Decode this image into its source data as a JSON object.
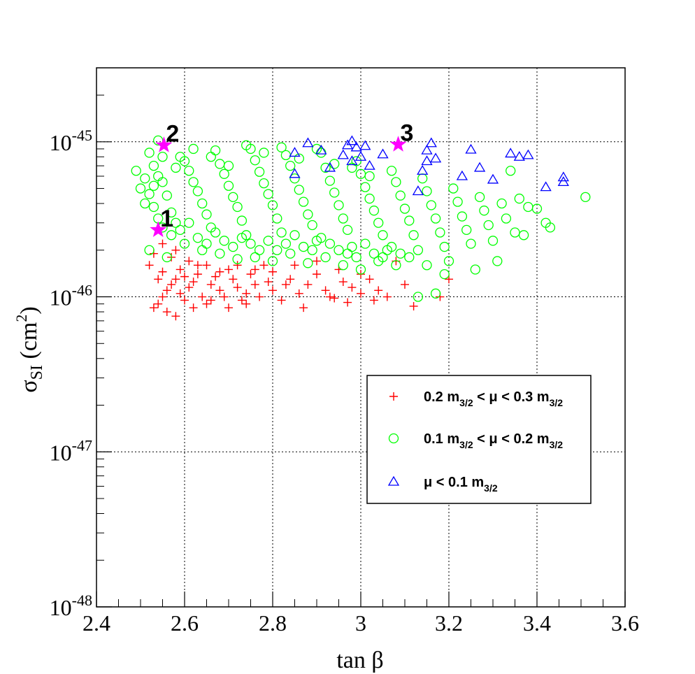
{
  "chart_data": {
    "type": "scatter",
    "xlabel": "tan β",
    "ylabel_main": "σ",
    "ylabel_sub": "SI",
    "ylabel_unit_pre": " (cm",
    "ylabel_unit_sup": "2",
    "ylabel_unit_post": ")",
    "xlim": [
      2.4,
      3.6
    ],
    "ylim": [
      1e-48,
      3e-45
    ],
    "yscale": "log",
    "grid": true,
    "legend_position": "bottom-right",
    "x_ticks": [
      {
        "value": 2.4,
        "label": "2.4"
      },
      {
        "value": 2.6,
        "label": "2.6"
      },
      {
        "value": 2.8,
        "label": "2.8"
      },
      {
        "value": 3.0,
        "label": "3"
      },
      {
        "value": 3.2,
        "label": "3.2"
      },
      {
        "value": 3.4,
        "label": "3.4"
      },
      {
        "value": 3.6,
        "label": "3.6"
      }
    ],
    "y_ticks": [
      {
        "value": 1e-48,
        "base": "10",
        "exp": "-48"
      },
      {
        "value": 1e-47,
        "base": "10",
        "exp": "-47"
      },
      {
        "value": 1e-46,
        "base": "10",
        "exp": "-46"
      },
      {
        "value": 1e-45,
        "base": "10",
        "exp": "-45"
      }
    ],
    "series": [
      {
        "marker": "plus",
        "color": "#ff0000",
        "legend": [
          "0.2 m",
          "3/2",
          " < μ < 0.3 m",
          "3/2"
        ],
        "points": [
          [
            2.53,
            8.5e-47
          ],
          [
            2.54,
            9e-47
          ],
          [
            2.55,
            1e-46
          ],
          [
            2.56,
            1.1e-46
          ],
          [
            2.57,
            1.2e-46
          ],
          [
            2.58,
            1.3e-46
          ],
          [
            2.59,
            1.05e-46
          ],
          [
            2.6,
            9.5e-47
          ],
          [
            2.61,
            1.15e-46
          ],
          [
            2.62,
            1.25e-46
          ],
          [
            2.63,
            1.4e-46
          ],
          [
            2.64,
            1e-46
          ],
          [
            2.65,
            9e-47
          ],
          [
            2.66,
            1.2e-46
          ],
          [
            2.67,
            1.35e-46
          ],
          [
            2.68,
            1.1e-46
          ],
          [
            2.69,
            1e-46
          ],
          [
            2.7,
            1.5e-46
          ],
          [
            2.71,
            1.3e-46
          ],
          [
            2.72,
            1.15e-46
          ],
          [
            2.73,
            9.5e-47
          ],
          [
            2.74,
            1.05e-46
          ],
          [
            2.75,
            1.4e-46
          ],
          [
            2.76,
            1.2e-46
          ],
          [
            2.77,
            1e-46
          ],
          [
            2.78,
            1.6e-46
          ],
          [
            2.79,
            1.25e-46
          ],
          [
            2.8,
            1.1e-46
          ],
          [
            2.82,
            9.5e-47
          ],
          [
            2.84,
            1.3e-46
          ],
          [
            2.86,
            1.05e-46
          ],
          [
            2.88,
            1.2e-46
          ],
          [
            2.9,
            1.4e-46
          ],
          [
            2.92,
            1.1e-46
          ],
          [
            2.94,
            9.8e-47
          ],
          [
            2.96,
            1.25e-46
          ],
          [
            2.98,
            1.15e-46
          ],
          [
            3.0,
            1.05e-46
          ],
          [
            3.02,
            1.3e-46
          ],
          [
            3.04,
            1.1e-46
          ],
          [
            3.06,
            1e-46
          ],
          [
            3.08,
            1.7e-46
          ],
          [
            3.1,
            1.2e-46
          ],
          [
            3.12,
            8.7e-47
          ],
          [
            3.18,
            1e-46
          ],
          [
            3.2,
            1.3e-46
          ],
          [
            2.52,
            1.6e-46
          ],
          [
            2.53,
            1.9e-46
          ],
          [
            2.55,
            2.2e-46
          ],
          [
            2.57,
            1.8e-46
          ],
          [
            2.59,
            1.5e-46
          ],
          [
            2.61,
            1.7e-46
          ],
          [
            2.63,
            1.6e-46
          ],
          [
            2.56,
            8e-47
          ],
          [
            2.58,
            7.5e-47
          ],
          [
            2.62,
            8.5e-47
          ],
          [
            2.66,
            9.5e-47
          ],
          [
            2.7,
            8.5e-47
          ],
          [
            2.74,
            9e-47
          ],
          [
            2.54,
            1.3e-46
          ],
          [
            2.55,
            1.45e-46
          ],
          [
            2.6,
            1.35e-46
          ],
          [
            2.68,
            1.45e-46
          ],
          [
            2.72,
            1.6e-46
          ],
          [
            2.76,
            1.5e-46
          ],
          [
            2.8,
            1.45e-46
          ],
          [
            2.85,
            1.6e-46
          ],
          [
            2.9,
            1.7e-46
          ],
          [
            2.95,
            1.5e-46
          ],
          [
            3.0,
            1.4e-46
          ],
          [
            2.87,
            8.5e-47
          ],
          [
            2.93,
            1e-46
          ],
          [
            2.97,
            9.2e-47
          ],
          [
            3.03,
            9.5e-47
          ],
          [
            2.83,
            1.2e-46
          ],
          [
            2.65,
            1.6e-46
          ],
          [
            2.58,
            2e-46
          ]
        ]
      },
      {
        "marker": "circle",
        "color": "#00ff00",
        "legend": [
          "0.1 m",
          "3/2",
          " < μ < 0.2 m",
          "3/2"
        ],
        "points": [
          [
            2.49,
            6.5e-46
          ],
          [
            2.5,
            5e-46
          ],
          [
            2.51,
            4e-46
          ],
          [
            2.52,
            8.5e-46
          ],
          [
            2.53,
            7e-46
          ],
          [
            2.54,
            6e-46
          ],
          [
            2.55,
            5.5e-46
          ],
          [
            2.56,
            4.5e-46
          ],
          [
            2.57,
            3.5e-46
          ],
          [
            2.58,
            3e-46
          ],
          [
            2.59,
            8e-46
          ],
          [
            2.6,
            7.5e-46
          ],
          [
            2.61,
            6.5e-46
          ],
          [
            2.62,
            5.5e-46
          ],
          [
            2.63,
            4.8e-46
          ],
          [
            2.64,
            4e-46
          ],
          [
            2.65,
            3.4e-46
          ],
          [
            2.66,
            2.8e-46
          ],
          [
            2.67,
            8.8e-46
          ],
          [
            2.68,
            7.2e-46
          ],
          [
            2.69,
            6.2e-46
          ],
          [
            2.7,
            5.2e-46
          ],
          [
            2.71,
            4.4e-46
          ],
          [
            2.72,
            3.8e-46
          ],
          [
            2.73,
            3.1e-46
          ],
          [
            2.74,
            2.5e-46
          ],
          [
            2.75,
            9e-46
          ],
          [
            2.76,
            7.6e-46
          ],
          [
            2.77,
            6.4e-46
          ],
          [
            2.78,
            5.4e-46
          ],
          [
            2.79,
            4.6e-46
          ],
          [
            2.8,
            3.9e-46
          ],
          [
            2.81,
            3.2e-46
          ],
          [
            2.82,
            2.6e-46
          ],
          [
            2.83,
            8.2e-46
          ],
          [
            2.84,
            7e-46
          ],
          [
            2.85,
            5.8e-46
          ],
          [
            2.86,
            4.9e-46
          ],
          [
            2.87,
            4.1e-46
          ],
          [
            2.88,
            3.4e-46
          ],
          [
            2.89,
            2.9e-46
          ],
          [
            2.9,
            2.3e-46
          ],
          [
            2.91,
            8.5e-46
          ],
          [
            2.92,
            6.8e-46
          ],
          [
            2.93,
            5.6e-46
          ],
          [
            2.94,
            4.7e-46
          ],
          [
            2.95,
            3.9e-46
          ],
          [
            2.96,
            3.2e-46
          ],
          [
            2.97,
            2.7e-46
          ],
          [
            2.98,
            2.1e-46
          ],
          [
            2.99,
            7.5e-46
          ],
          [
            3.0,
            6.2e-46
          ],
          [
            3.01,
            5.1e-46
          ],
          [
            3.02,
            4.3e-46
          ],
          [
            3.03,
            3.6e-46
          ],
          [
            3.04,
            3e-46
          ],
          [
            3.05,
            2.5e-46
          ],
          [
            3.06,
            2e-46
          ],
          [
            3.07,
            6.5e-46
          ],
          [
            3.08,
            5.5e-46
          ],
          [
            3.09,
            4.5e-46
          ],
          [
            3.1,
            3.7e-46
          ],
          [
            3.11,
            3.1e-46
          ],
          [
            3.12,
            2.5e-46
          ],
          [
            3.13,
            2e-46
          ],
          [
            3.14,
            5.8e-46
          ],
          [
            3.15,
            4.8e-46
          ],
          [
            3.16,
            3.9e-46
          ],
          [
            3.17,
            3.2e-46
          ],
          [
            3.18,
            2.6e-46
          ],
          [
            3.19,
            2.1e-46
          ],
          [
            3.2,
            1.7e-46
          ],
          [
            3.21,
            5e-46
          ],
          [
            3.22,
            4.1e-46
          ],
          [
            3.23,
            3.3e-46
          ],
          [
            3.24,
            2.7e-46
          ],
          [
            3.25,
            2.2e-46
          ],
          [
            3.26,
            1.5e-46
          ],
          [
            3.27,
            4.4e-46
          ],
          [
            3.28,
            3.6e-46
          ],
          [
            3.29,
            2.9e-46
          ],
          [
            3.3,
            2.3e-46
          ],
          [
            3.31,
            1.7e-46
          ],
          [
            3.32,
            4e-46
          ],
          [
            3.33,
            3.2e-46
          ],
          [
            3.34,
            6.5e-46
          ],
          [
            3.35,
            2.6e-46
          ],
          [
            3.36,
            4.3e-46
          ],
          [
            3.37,
            2.5e-46
          ],
          [
            3.38,
            3.8e-46
          ],
          [
            3.4,
            3.7e-46
          ],
          [
            3.42,
            3e-46
          ],
          [
            3.43,
            2.8e-46
          ],
          [
            3.51,
            4.4e-46
          ],
          [
            3.13,
            1e-46
          ],
          [
            3.17,
            1.05e-46
          ],
          [
            2.54,
            1.02e-45
          ],
          [
            2.52,
            2e-46
          ],
          [
            2.56,
            1.8e-46
          ],
          [
            2.6,
            2.2e-46
          ],
          [
            2.64,
            2e-46
          ],
          [
            2.68,
            1.9e-46
          ],
          [
            2.72,
            1.75e-46
          ],
          [
            2.76,
            1.8e-46
          ],
          [
            2.8,
            1.7e-46
          ],
          [
            2.84,
            1.9e-46
          ],
          [
            2.88,
            1.65e-46
          ],
          [
            2.92,
            1.8e-46
          ],
          [
            2.96,
            1.6e-46
          ],
          [
            3.0,
            1.5e-46
          ],
          [
            3.04,
            1.7e-46
          ],
          [
            3.08,
            1.6e-46
          ],
          [
            2.53,
            5.2e-46
          ],
          [
            2.55,
            8e-46
          ],
          [
            2.58,
            6.8e-46
          ],
          [
            2.62,
            9e-46
          ],
          [
            2.66,
            8e-46
          ],
          [
            2.7,
            7e-46
          ],
          [
            2.74,
            9.5e-46
          ],
          [
            2.78,
            8.5e-46
          ],
          [
            2.82,
            9.2e-46
          ],
          [
            2.86,
            7.8e-46
          ],
          [
            2.9,
            9e-46
          ],
          [
            2.94,
            7.2e-46
          ],
          [
            2.98,
            6.8e-46
          ],
          [
            3.02,
            6e-46
          ],
          [
            2.51,
            5.8e-46
          ],
          [
            2.52,
            4.6e-46
          ],
          [
            2.53,
            3.8e-46
          ],
          [
            2.54,
            3.2e-46
          ],
          [
            2.55,
            2.8e-46
          ],
          [
            2.57,
            2.5e-46
          ],
          [
            2.59,
            2.7e-46
          ],
          [
            2.61,
            3e-46
          ],
          [
            2.63,
            2.4e-46
          ],
          [
            2.65,
            2.2e-46
          ],
          [
            2.67,
            2.6e-46
          ],
          [
            2.69,
            2.3e-46
          ],
          [
            2.71,
            2.1e-46
          ],
          [
            2.73,
            2.4e-46
          ],
          [
            2.75,
            2.2e-46
          ],
          [
            2.77,
            2e-46
          ],
          [
            2.79,
            2.3e-46
          ],
          [
            2.81,
            2e-46
          ],
          [
            2.83,
            2.2e-46
          ],
          [
            2.85,
            2.5e-46
          ],
          [
            2.87,
            2.1e-46
          ],
          [
            2.89,
            2e-46
          ],
          [
            2.91,
            2.4e-46
          ],
          [
            2.93,
            2.2e-46
          ],
          [
            2.95,
            2e-46
          ],
          [
            2.97,
            1.9e-46
          ],
          [
            2.99,
            1.8e-46
          ],
          [
            3.01,
            2.2e-46
          ],
          [
            3.03,
            1.9e-46
          ],
          [
            3.05,
            1.8e-46
          ],
          [
            3.07,
            2.1e-46
          ],
          [
            3.09,
            1.9e-46
          ],
          [
            3.11,
            1.8e-46
          ],
          [
            3.15,
            1.6e-46
          ],
          [
            3.19,
            1.4e-46
          ]
        ]
      },
      {
        "marker": "triangle",
        "color": "#0000ff",
        "legend": [
          "μ < 0.1 m",
          "3/2"
        ],
        "points": [
          [
            2.85,
            8.5e-46
          ],
          [
            2.85,
            6.2e-46
          ],
          [
            2.88,
            9.8e-46
          ],
          [
            2.91,
            8.8e-46
          ],
          [
            2.93,
            6.8e-46
          ],
          [
            2.96,
            8.2e-46
          ],
          [
            2.97,
            9.5e-46
          ],
          [
            2.98,
            1.01e-45
          ],
          [
            2.98,
            7.5e-46
          ],
          [
            2.99,
            9.2e-46
          ],
          [
            3.0,
            8e-46
          ],
          [
            3.02,
            7e-46
          ],
          [
            3.01,
            9.4e-46
          ],
          [
            3.05,
            8.3e-46
          ],
          [
            3.13,
            4.8e-46
          ],
          [
            3.14,
            6.5e-46
          ],
          [
            3.15,
            7.5e-46
          ],
          [
            3.15,
            8.8e-46
          ],
          [
            3.16,
            9.8e-46
          ],
          [
            3.17,
            7.8e-46
          ],
          [
            3.23,
            6e-46
          ],
          [
            3.25,
            8.9e-46
          ],
          [
            3.27,
            6.8e-46
          ],
          [
            3.3,
            5.7e-46
          ],
          [
            3.34,
            8.4e-46
          ],
          [
            3.36,
            8e-46
          ],
          [
            3.38,
            8.2e-46
          ],
          [
            3.42,
            5.1e-46
          ],
          [
            3.46,
            5.9e-46
          ],
          [
            3.46,
            5.5e-46
          ]
        ]
      }
    ],
    "stars": [
      {
        "label": "1",
        "x": 2.54,
        "y": 2.7e-46
      },
      {
        "label": "2",
        "x": 2.553,
        "y": 9.5e-46
      },
      {
        "label": "3",
        "x": 3.085,
        "y": 9.6e-46
      }
    ],
    "star_color": "#ff00ff"
  }
}
